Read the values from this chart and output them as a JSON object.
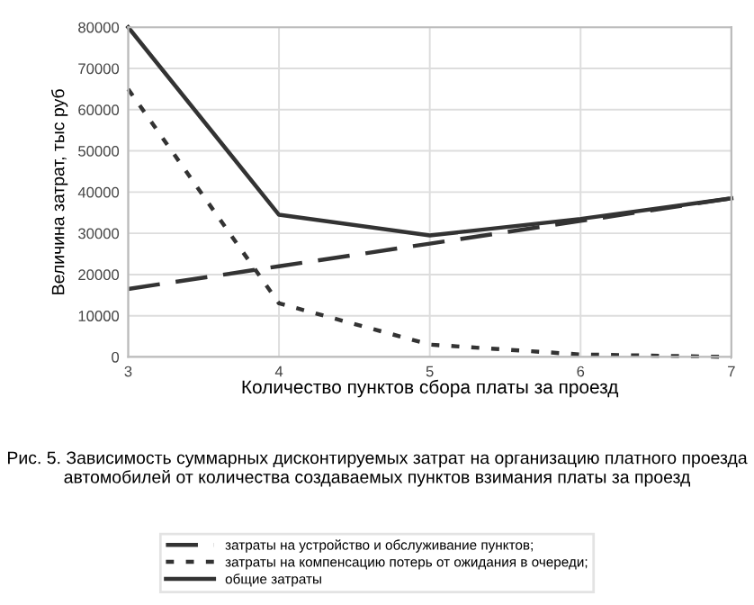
{
  "chart_data": {
    "type": "line",
    "title": "Рис. 5. Зависимость суммарных дисконтируемых затрат на организацию платного проезда автомобилей от количества создаваемых пунктов взимания платы за проезд",
    "xlabel": "Количество пунктов сбора платы за проезд",
    "ylabel": "Величина затрат, тыс руб",
    "x": [
      3,
      4,
      5,
      6,
      7
    ],
    "series": [
      {
        "name": "затраты на устройство и обслуживание пунктов;",
        "color": "#333333",
        "line_style": "dashed",
        "values": [
          16500,
          22000,
          27500,
          33000,
          38500
        ]
      },
      {
        "name": "затраты на компенсацию потерь от ожидания в очереди;",
        "color": "#333333",
        "line_style": "dotted",
        "values": [
          65000,
          13000,
          3000,
          600,
          0
        ]
      },
      {
        "name": "общие затраты",
        "color": "#333333",
        "line_style": "solid",
        "values": [
          80000,
          34500,
          29500,
          33500,
          38500
        ]
      }
    ],
    "xlim": [
      3,
      7
    ],
    "xticks": [
      3,
      4,
      5,
      6,
      7
    ],
    "ylim": [
      0,
      80000
    ],
    "yticks": [
      0,
      10000,
      20000,
      30000,
      40000,
      50000,
      60000,
      70000,
      80000
    ],
    "grid": true,
    "legend": "bottom",
    "marker": "none"
  }
}
